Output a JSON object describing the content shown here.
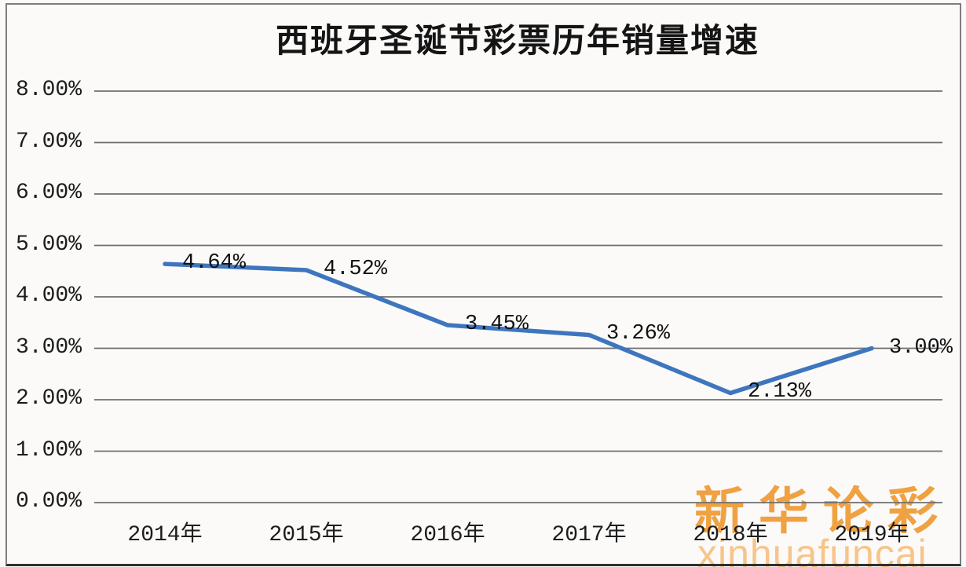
{
  "chart_data": {
    "type": "line",
    "title": "西班牙圣诞节彩票历年销量增速",
    "categories": [
      "2014年",
      "2015年",
      "2016年",
      "2017年",
      "2018年",
      "2019年"
    ],
    "values": [
      4.64,
      4.52,
      3.45,
      3.26,
      2.13,
      3.0
    ],
    "data_labels": [
      "4.64%",
      "4.52%",
      "3.45%",
      "3.26%",
      "2.13%",
      "3.00%"
    ],
    "y_ticks": [
      "0.00%",
      "1.00%",
      "2.00%",
      "3.00%",
      "4.00%",
      "5.00%",
      "6.00%",
      "7.00%",
      "8.00%"
    ],
    "ylim": [
      0,
      8
    ],
    "grid": true,
    "legend": "none",
    "line_color": "#3e76be",
    "gridline_color": "#6e6e6e",
    "text_color": "#1c1c1c",
    "background_color": "#fbfaf9"
  },
  "watermark": {
    "cjk": "新华论彩",
    "latin": "xinhuafuncai",
    "cjk_color": "#f0a142",
    "latin_color": "#f8c489"
  }
}
